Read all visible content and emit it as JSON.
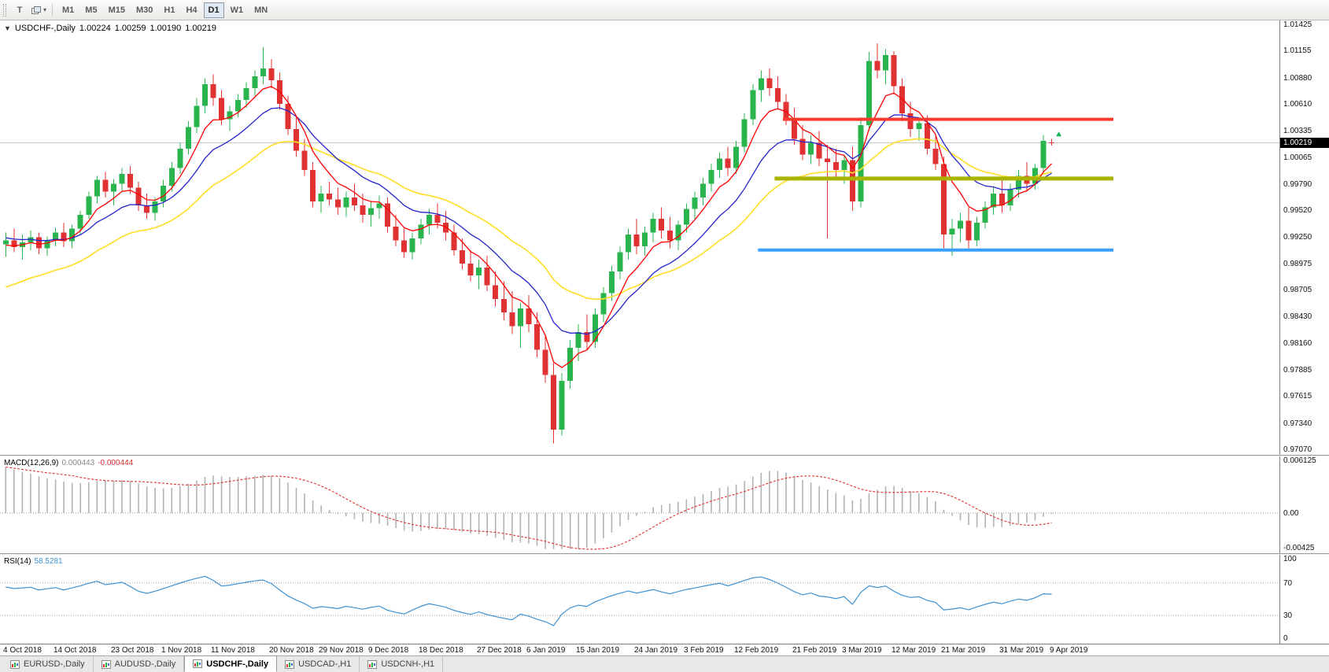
{
  "toolbar": {
    "pointer_tool_glyph": "T",
    "dropdown_arrow": "▾",
    "timeframes": [
      {
        "label": "M1",
        "active": false
      },
      {
        "label": "M5",
        "active": false
      },
      {
        "label": "M15",
        "active": false
      },
      {
        "label": "M30",
        "active": false
      },
      {
        "label": "H1",
        "active": false
      },
      {
        "label": "H4",
        "active": false
      },
      {
        "label": "D1",
        "active": true
      },
      {
        "label": "W1",
        "active": false
      },
      {
        "label": "MN",
        "active": false
      }
    ]
  },
  "chart_header": {
    "collapse_arrow": "▼",
    "symbol": "USDCHF-,Daily",
    "open": "1.00224",
    "high": "1.00259",
    "low": "1.00190",
    "close": "1.00219"
  },
  "tabs": [
    {
      "label": "EURUSD-,Daily",
      "active": false
    },
    {
      "label": "AUDUSD-,Daily",
      "active": false
    },
    {
      "label": "USDCHF-,Daily",
      "active": true
    },
    {
      "label": "USDCAD-,H1",
      "active": false
    },
    {
      "label": "USDCNH-,H1",
      "active": false
    }
  ],
  "chart_data": {
    "type": "candlestick",
    "symbol": "USDCHF",
    "timeframe": "Daily",
    "current_price": "1.00219",
    "bid_line_price": 1.00219,
    "price_axis": {
      "max": 1.01425,
      "min": 0.9707,
      "labels": [
        "1.01425",
        "1.01155",
        "1.00880",
        "1.00610",
        "1.00335",
        "1.00065",
        "0.99790",
        "0.99520",
        "0.99250",
        "0.98975",
        "0.98705",
        "0.98430",
        "0.98160",
        "0.97885",
        "0.97615",
        "0.97340",
        "0.97070"
      ]
    },
    "date_labels": [
      "4 Oct 2018",
      "14 Oct 2018",
      "23 Oct 2018",
      "1 Nov 2018",
      "11 Nov 2018",
      "20 Nov 2018",
      "29 Nov 2018",
      "9 Dec 2018",
      "18 Dec 2018",
      "27 Dec 2018",
      "6 Jan 2019",
      "15 Jan 2019",
      "24 Jan 2019",
      "3 Feb 2019",
      "12 Feb 2019",
      "21 Feb 2019",
      "3 Mar 2019",
      "12 Mar 2019",
      "21 Mar 2019",
      "31 Mar 2019",
      "9 Apr 2019"
    ],
    "colors": {
      "up": "#2ab44e",
      "down": "#e03232",
      "ma_fast": "#ff0000",
      "ma_mid": "#2424cc",
      "ma_slow": "#ffdf2e",
      "macd_hist": "#b2b2b2",
      "macd_signal": "#e03131",
      "rsi": "#3f92d2"
    },
    "moving_averages": [
      {
        "name": "ma-slow-yellow",
        "period": 26,
        "seed": 0.987,
        "color": "#ffdf2e",
        "width": 1.7
      },
      {
        "name": "ma-mid-blue",
        "period": 13,
        "seed": 0.9925,
        "color": "#2424cc",
        "width": 1.3
      },
      {
        "name": "ma-fast-red",
        "period": 6,
        "seed": 0.9915,
        "color": "#ff0000",
        "width": 1.3
      }
    ],
    "hlines": [
      {
        "name": "resistance-line-red",
        "price": 1.0046,
        "color": "#ff3b30",
        "width": 4,
        "from_index": 94
      },
      {
        "name": "support-line-olive",
        "price": 0.99853,
        "color": "#a8b400",
        "width": 5,
        "from_index": 93
      },
      {
        "name": "support-line-blue",
        "price": 0.9912,
        "color": "#3aa0ff",
        "width": 4,
        "from_index": 91
      }
    ],
    "end_marker": {
      "shape": "arrow-up",
      "color": "#19b25b",
      "price": 1.0031
    },
    "macd": {
      "label": "MACD(12,26,9)",
      "value": "0.000443",
      "signal_value": "-0.000444",
      "axis_labels": [
        "0.006125",
        "0.00",
        "-0.00425"
      ],
      "fast": 12,
      "slow": 26,
      "signal": 9,
      "seed_fast": 0.99,
      "seed_slow": 0.9845
    },
    "rsi": {
      "label": "RSI(14)",
      "value": "58.5281",
      "period": 14,
      "axis_labels": [
        "100",
        "70",
        "30",
        "0"
      ],
      "levels": [
        70,
        30
      ]
    },
    "candles": [
      [
        0.9918,
        0.993,
        0.9905,
        0.9922
      ],
      [
        0.9922,
        0.9934,
        0.991,
        0.9915
      ],
      [
        0.9915,
        0.9928,
        0.9902,
        0.992
      ],
      [
        0.992,
        0.9932,
        0.9912,
        0.9925
      ],
      [
        0.9925,
        0.993,
        0.9908,
        0.9914
      ],
      [
        0.9914,
        0.9926,
        0.9906,
        0.9922
      ],
      [
        0.9922,
        0.9935,
        0.9916,
        0.993
      ],
      [
        0.993,
        0.994,
        0.9915,
        0.9921
      ],
      [
        0.9921,
        0.9938,
        0.9914,
        0.9934
      ],
      [
        0.9934,
        0.9952,
        0.9928,
        0.9948
      ],
      [
        0.9948,
        0.9972,
        0.9944,
        0.9967
      ],
      [
        0.9967,
        0.9988,
        0.996,
        0.9984
      ],
      [
        0.9984,
        0.9992,
        0.9966,
        0.9972
      ],
      [
        0.9972,
        0.9985,
        0.9958,
        0.998
      ],
      [
        0.998,
        0.9996,
        0.9972,
        0.999
      ],
      [
        0.999,
        0.9998,
        0.997,
        0.9976
      ],
      [
        0.9976,
        0.9982,
        0.9952,
        0.9958
      ],
      [
        0.9958,
        0.997,
        0.9944,
        0.995
      ],
      [
        0.995,
        0.9966,
        0.9942,
        0.9962
      ],
      [
        0.9962,
        0.9984,
        0.9956,
        0.9978
      ],
      [
        0.9978,
        1.0002,
        0.9972,
        0.9996
      ],
      [
        0.9996,
        1.0022,
        0.999,
        1.0016
      ],
      [
        1.0016,
        1.0044,
        1.001,
        1.0038
      ],
      [
        1.0038,
        1.0068,
        1.0032,
        1.006
      ],
      [
        1.006,
        1.0088,
        1.0052,
        1.0082
      ],
      [
        1.0082,
        1.0092,
        1.006,
        1.0068
      ],
      [
        1.0068,
        1.0076,
        1.004,
        1.0046
      ],
      [
        1.0046,
        1.006,
        1.0034,
        1.0054
      ],
      [
        1.0054,
        1.0072,
        1.0048,
        1.0066
      ],
      [
        1.0066,
        1.0084,
        1.0058,
        1.0078
      ],
      [
        1.0078,
        1.0096,
        1.007,
        1.009
      ],
      [
        1.009,
        1.012,
        1.0082,
        1.0098
      ],
      [
        1.0098,
        1.0108,
        1.0078,
        1.0086
      ],
      [
        1.0086,
        1.0094,
        1.0056,
        1.0062
      ],
      [
        1.0062,
        1.007,
        1.003,
        1.0036
      ],
      [
        1.0036,
        1.0048,
        1.0008,
        1.0014
      ],
      [
        1.0014,
        1.0026,
        0.9988,
        0.9994
      ],
      [
        0.9994,
        1.0002,
        0.9956,
        0.9962
      ],
      [
        0.9962,
        0.9978,
        0.995,
        0.997
      ],
      [
        0.997,
        0.9982,
        0.9958,
        0.9964
      ],
      [
        0.9964,
        0.9976,
        0.9948,
        0.9956
      ],
      [
        0.9956,
        0.9972,
        0.9946,
        0.9966
      ],
      [
        0.9966,
        0.998,
        0.9952,
        0.9958
      ],
      [
        0.9958,
        0.997,
        0.994,
        0.9948
      ],
      [
        0.9948,
        0.9962,
        0.9936,
        0.9955
      ],
      [
        0.9955,
        0.9968,
        0.9944,
        0.996
      ],
      [
        0.996,
        0.9966,
        0.993,
        0.9936
      ],
      [
        0.9936,
        0.9948,
        0.9916,
        0.9922
      ],
      [
        0.9922,
        0.9934,
        0.9904,
        0.991
      ],
      [
        0.991,
        0.993,
        0.9902,
        0.9924
      ],
      [
        0.9924,
        0.9944,
        0.9918,
        0.9938
      ],
      [
        0.9938,
        0.9954,
        0.9928,
        0.9948
      ],
      [
        0.9948,
        0.996,
        0.9934,
        0.994
      ],
      [
        0.994,
        0.9952,
        0.9922,
        0.993
      ],
      [
        0.993,
        0.9938,
        0.9906,
        0.9912
      ],
      [
        0.9912,
        0.9924,
        0.9892,
        0.9898
      ],
      [
        0.9898,
        0.9912,
        0.988,
        0.9886
      ],
      [
        0.9886,
        0.9902,
        0.9872,
        0.9894
      ],
      [
        0.9894,
        0.9906,
        0.987,
        0.9876
      ],
      [
        0.9876,
        0.989,
        0.9854,
        0.9862
      ],
      [
        0.9862,
        0.988,
        0.984,
        0.9848
      ],
      [
        0.9848,
        0.987,
        0.9826,
        0.9834
      ],
      [
        0.9834,
        0.9858,
        0.9812,
        0.9852
      ],
      [
        0.9852,
        0.9866,
        0.9828,
        0.9836
      ],
      [
        0.9836,
        0.9848,
        0.9802,
        0.981
      ],
      [
        0.981,
        0.9824,
        0.9776,
        0.9784
      ],
      [
        0.9784,
        0.9796,
        0.9714,
        0.9728
      ],
      [
        0.9728,
        0.9786,
        0.9722,
        0.9778
      ],
      [
        0.9778,
        0.982,
        0.977,
        0.9812
      ],
      [
        0.9812,
        0.9836,
        0.9798,
        0.9828
      ],
      [
        0.9828,
        0.9846,
        0.981,
        0.9818
      ],
      [
        0.9818,
        0.9852,
        0.9812,
        0.9846
      ],
      [
        0.9846,
        0.9874,
        0.9838,
        0.9868
      ],
      [
        0.9868,
        0.9896,
        0.986,
        0.989
      ],
      [
        0.989,
        0.9916,
        0.9882,
        0.991
      ],
      [
        0.991,
        0.9934,
        0.9902,
        0.9928
      ],
      [
        0.9928,
        0.9944,
        0.9908,
        0.9916
      ],
      [
        0.9916,
        0.9936,
        0.9906,
        0.993
      ],
      [
        0.993,
        0.995,
        0.992,
        0.9944
      ],
      [
        0.9944,
        0.9956,
        0.9924,
        0.9932
      ],
      [
        0.9932,
        0.9946,
        0.9914,
        0.9922
      ],
      [
        0.9922,
        0.9942,
        0.9912,
        0.9938
      ],
      [
        0.9938,
        0.996,
        0.993,
        0.9954
      ],
      [
        0.9954,
        0.9972,
        0.9944,
        0.9966
      ],
      [
        0.9966,
        0.9986,
        0.9958,
        0.998
      ],
      [
        0.998,
        1.0,
        0.9972,
        0.9994
      ],
      [
        0.9994,
        1.0012,
        0.9986,
        1.0006
      ],
      [
        1.0006,
        1.0018,
        0.9988,
        0.9996
      ],
      [
        0.9996,
        1.0024,
        0.999,
        1.0018
      ],
      [
        1.0018,
        1.0052,
        1.0012,
        1.0046
      ],
      [
        1.0046,
        1.0082,
        1.004,
        1.0076
      ],
      [
        1.0076,
        1.0096,
        1.0064,
        1.0088
      ],
      [
        1.0088,
        1.0098,
        1.007,
        1.0078
      ],
      [
        1.0078,
        1.009,
        1.0056,
        1.0064
      ],
      [
        1.0064,
        1.0072,
        1.004,
        1.0046
      ],
      [
        1.0046,
        1.0058,
        1.002,
        1.0026
      ],
      [
        1.0026,
        1.004,
        1.0004,
        1.001
      ],
      [
        1.001,
        1.003,
        1.0,
        1.0022
      ],
      [
        1.0022,
        1.0034,
        0.9998,
        1.0006
      ],
      [
        1.0006,
        1.002,
        0.9924,
        1.0002
      ],
      [
        1.0002,
        1.0016,
        0.9986,
        0.9994
      ],
      [
        0.9994,
        1.001,
        0.998,
        1.0004
      ],
      [
        1.0004,
        1.0018,
        0.9952,
        0.9962
      ],
      [
        0.9962,
        1.0048,
        0.9956,
        1.004
      ],
      [
        1.004,
        1.0115,
        1.0034,
        1.0106
      ],
      [
        1.0106,
        1.0124,
        1.0088,
        1.0096
      ],
      [
        1.0096,
        1.0118,
        1.0082,
        1.0112
      ],
      [
        1.0112,
        1.0116,
        1.0072,
        1.008
      ],
      [
        1.008,
        1.0088,
        1.0044,
        1.0052
      ],
      [
        1.0052,
        1.0064,
        1.0028,
        1.0036
      ],
      [
        1.0036,
        1.0048,
        1.0024,
        1.0042
      ],
      [
        1.0042,
        1.005,
        1.001,
        1.0016
      ],
      [
        1.0016,
        1.0028,
        0.9994,
        1.0
      ],
      [
        1.0,
        1.0008,
        0.9914,
        0.9928
      ],
      [
        0.9928,
        0.9944,
        0.9906,
        0.9934
      ],
      [
        0.9934,
        0.995,
        0.992,
        0.9942
      ],
      [
        0.9942,
        0.9956,
        0.9914,
        0.9922
      ],
      [
        0.9922,
        0.9946,
        0.9916,
        0.994
      ],
      [
        0.994,
        0.9962,
        0.9934,
        0.9956
      ],
      [
        0.9956,
        0.9976,
        0.9948,
        0.997
      ],
      [
        0.997,
        0.9984,
        0.995,
        0.9958
      ],
      [
        0.9958,
        0.998,
        0.9952,
        0.9974
      ],
      [
        0.9974,
        0.9994,
        0.9966,
        0.9988
      ],
      [
        0.9988,
        1.0002,
        0.9972,
        0.998
      ],
      [
        0.998,
        1.0,
        0.9974,
        0.9996
      ],
      [
        0.9996,
        1.003,
        0.999,
        1.0024
      ],
      [
        1.00224,
        1.00259,
        1.0019,
        1.00219
      ]
    ]
  }
}
